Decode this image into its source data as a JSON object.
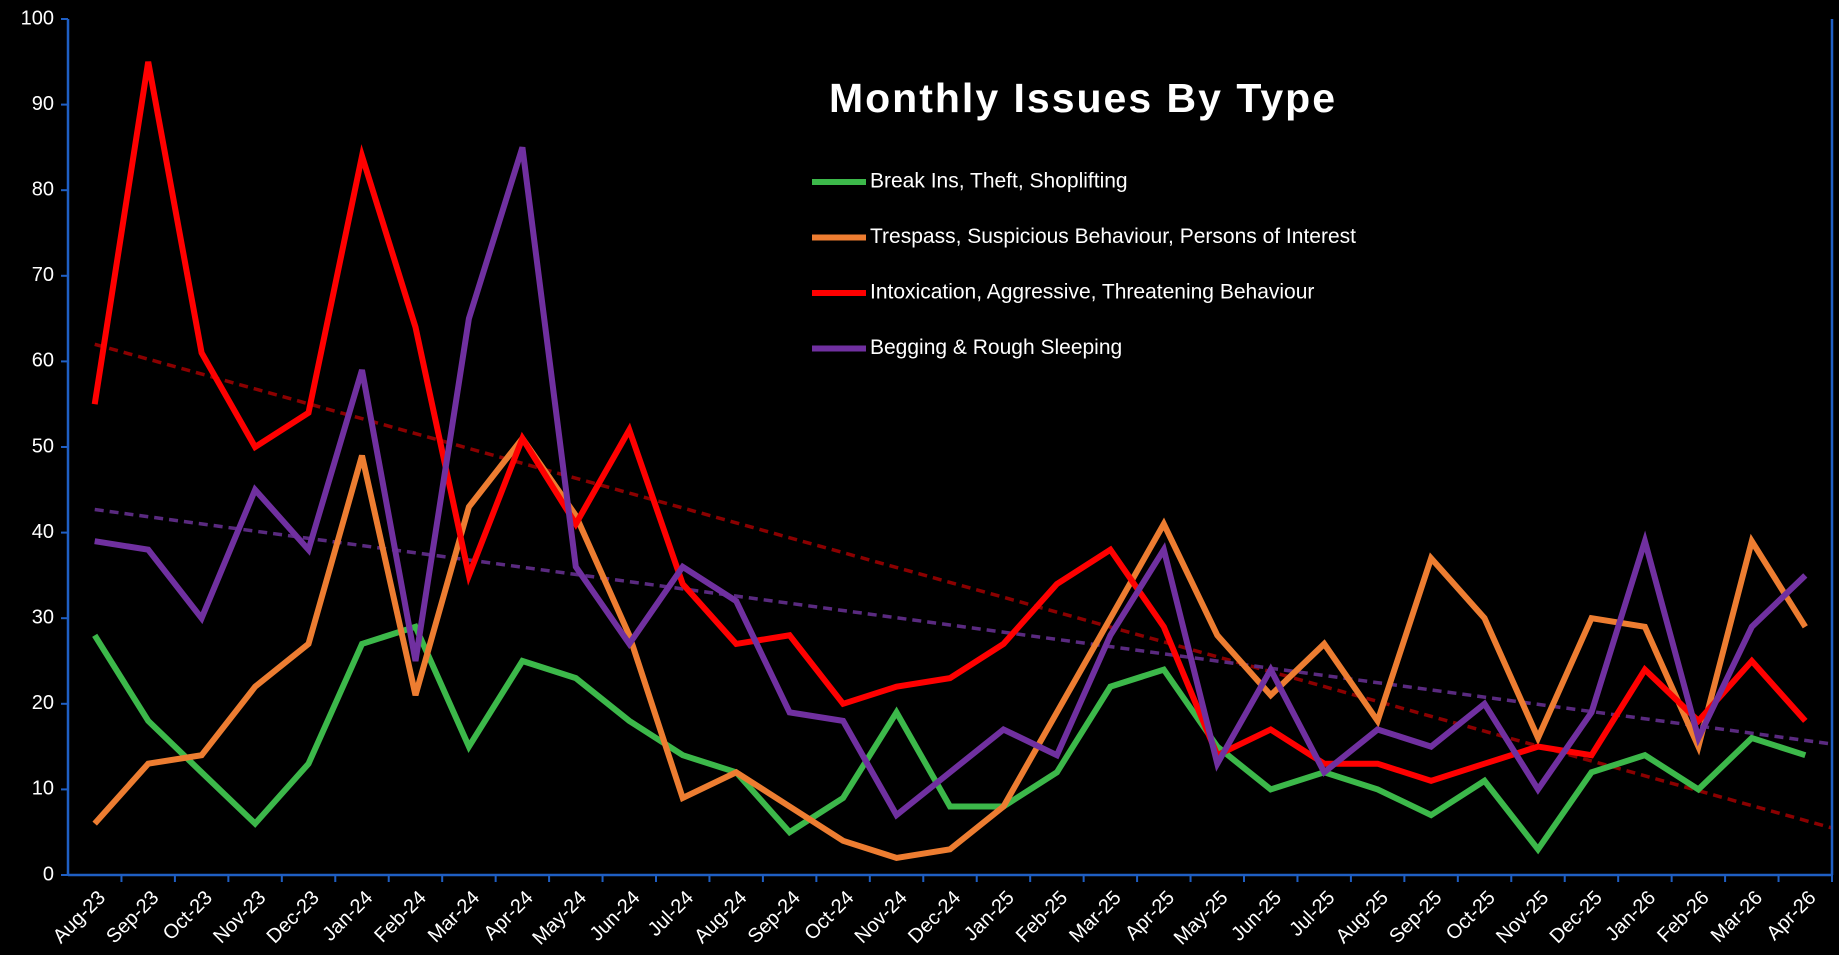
{
  "chart_data": {
    "type": "line",
    "title": "Monthly Issues By Type",
    "categories": [
      "Aug-23",
      "Sep-23",
      "Oct-23",
      "Nov-23",
      "Dec-23",
      "Jan-24",
      "Feb-24",
      "Mar-24",
      "Apr-24",
      "May-24",
      "Jun-24",
      "Jul-24",
      "Aug-24",
      "Sep-24",
      "Oct-24",
      "Nov-24",
      "Dec-24",
      "Jan-25",
      "Feb-25",
      "Mar-25",
      "Apr-25",
      "May-25",
      "Jun-25",
      "Jul-25",
      "Aug-25",
      "Sep-25",
      "Oct-25",
      "Nov-25",
      "Dec-25",
      "Jan-26",
      "Feb-26",
      "Mar-26",
      "Apr-26"
    ],
    "series": [
      {
        "name": "Break Ins, Theft, Shoplifting",
        "color": "#3cb84a",
        "values": [
          28,
          18,
          12,
          6,
          13,
          27,
          29,
          15,
          25,
          23,
          18,
          14,
          12,
          5,
          9,
          19,
          8,
          8,
          12,
          22,
          24,
          15,
          10,
          12,
          10,
          7,
          11,
          3,
          12,
          14,
          10,
          16,
          14
        ]
      },
      {
        "name": "Trespass, Suspicious Behaviour, Persons of Interest",
        "color": "#ed7d31",
        "values": [
          6,
          13,
          14,
          22,
          27,
          49,
          21,
          43,
          51,
          42,
          28,
          9,
          12,
          8,
          4,
          2,
          3,
          8,
          19,
          30,
          41,
          28,
          21,
          27,
          18,
          37,
          30,
          16,
          30,
          29,
          15,
          39,
          29
        ]
      },
      {
        "name": "Intoxication, Aggressive, Threatening Behaviour",
        "color": "#ff0000",
        "values": [
          55,
          95,
          61,
          50,
          54,
          84,
          64,
          35,
          51,
          41,
          52,
          34,
          27,
          28,
          20,
          22,
          23,
          27,
          34,
          38,
          29,
          14,
          17,
          13,
          13,
          11,
          13,
          15,
          14,
          24,
          18,
          25,
          18
        ]
      },
      {
        "name": "Begging & Rough Sleeping",
        "color": "#7030a0",
        "values": [
          39,
          38,
          30,
          45,
          38,
          59,
          25,
          65,
          85,
          36,
          27,
          36,
          32,
          19,
          18,
          7,
          12,
          17,
          14,
          28,
          38,
          13,
          24,
          12,
          17,
          15,
          20,
          10,
          19,
          39,
          16,
          29,
          35
        ]
      }
    ],
    "trendlines": [
      {
        "color": "#8b0000",
        "start": 62,
        "end": 5.5
      },
      {
        "color": "#5a2a80",
        "start": 42.7,
        "end": 15.3
      }
    ],
    "ylim": [
      0,
      100
    ],
    "yticks": [
      0,
      10,
      20,
      30,
      40,
      50,
      60,
      70,
      80,
      90,
      100
    ],
    "axis_color": "#1f5fc4",
    "background": "#000000"
  }
}
